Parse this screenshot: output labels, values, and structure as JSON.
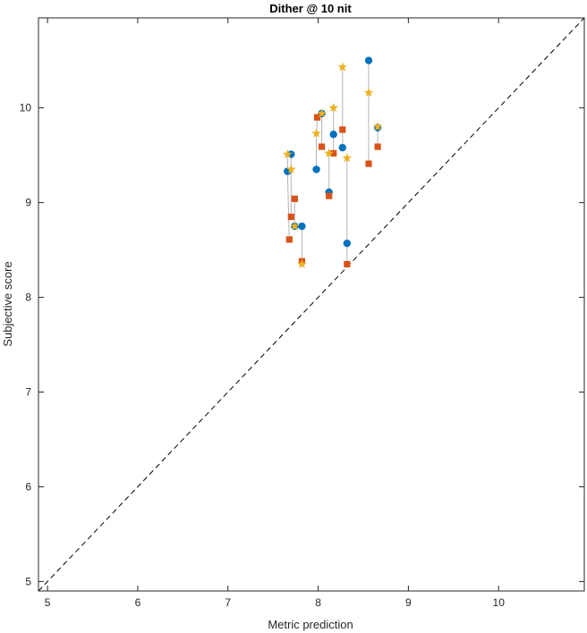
{
  "chart_data": {
    "type": "scatter",
    "title": "Dither @ 10 nit",
    "xlabel": "Metric prediction",
    "ylabel": "Subjective score",
    "xlim": [
      4.9,
      10.95
    ],
    "ylim": [
      4.9,
      10.95
    ],
    "xticks": [
      5,
      6,
      7,
      8,
      9,
      10
    ],
    "yticks": [
      5,
      6,
      7,
      8,
      9,
      10
    ],
    "grid": false,
    "reference_line": {
      "style": "dashed",
      "color": "#000000",
      "from": [
        4.9,
        4.9
      ],
      "to": [
        10.95,
        10.95
      ]
    },
    "connector_color": "#b4b4b4",
    "series": [
      {
        "marker": "circle",
        "color": "#0072BD",
        "points": [
          [
            7.66,
            9.33
          ],
          [
            7.7,
            9.51
          ],
          [
            7.74,
            8.75
          ],
          [
            7.82,
            8.75
          ],
          [
            7.98,
            9.35
          ],
          [
            8.04,
            9.94
          ],
          [
            8.12,
            9.11
          ],
          [
            8.17,
            9.72
          ],
          [
            8.27,
            9.58
          ],
          [
            8.32,
            8.57
          ],
          [
            8.56,
            10.5
          ],
          [
            8.66,
            9.79
          ]
        ]
      },
      {
        "marker": "square",
        "color": "#D95319",
        "points": [
          [
            7.68,
            8.61
          ],
          [
            7.7,
            8.85
          ],
          [
            7.74,
            9.04
          ],
          [
            7.82,
            8.38
          ],
          [
            7.99,
            9.9
          ],
          [
            8.04,
            9.59
          ],
          [
            8.12,
            9.07
          ],
          [
            8.17,
            9.52
          ],
          [
            8.27,
            9.77
          ],
          [
            8.32,
            8.35
          ],
          [
            8.56,
            9.41
          ],
          [
            8.66,
            9.59
          ]
        ]
      },
      {
        "marker": "star",
        "color": "#EDB120",
        "points": [
          [
            7.66,
            9.51
          ],
          [
            7.7,
            9.35
          ],
          [
            7.74,
            8.75
          ],
          [
            7.82,
            8.35
          ],
          [
            7.98,
            9.73
          ],
          [
            8.04,
            9.94
          ],
          [
            8.12,
            9.52
          ],
          [
            8.17,
            10.0
          ],
          [
            8.27,
            10.43
          ],
          [
            8.32,
            9.47
          ],
          [
            8.56,
            10.16
          ],
          [
            8.66,
            9.8
          ]
        ]
      }
    ]
  }
}
